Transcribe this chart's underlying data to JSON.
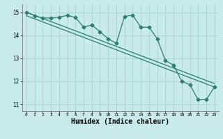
{
  "x": [
    0,
    1,
    2,
    3,
    4,
    5,
    6,
    7,
    8,
    9,
    10,
    11,
    12,
    13,
    14,
    15,
    16,
    17,
    18,
    19,
    20,
    21,
    22,
    23
  ],
  "y_line": [
    15.0,
    14.85,
    14.75,
    14.75,
    14.78,
    14.87,
    14.77,
    14.35,
    14.45,
    14.15,
    13.85,
    13.65,
    14.82,
    14.87,
    14.35,
    14.35,
    13.85,
    12.9,
    12.7,
    12.0,
    11.85,
    11.2,
    11.2,
    11.75
  ],
  "trend1_start": 15.0,
  "trend1_end": 11.9,
  "trend2_start": 14.85,
  "trend2_end": 11.75,
  "line_color": "#2a7f6f",
  "bg_color": "#c8eaea",
  "grid_color": "#a0cccc",
  "xlabel": "Humidex (Indice chaleur)",
  "xlabel_fontsize": 7,
  "yticks": [
    11,
    12,
    13,
    14,
    15
  ],
  "xticks": [
    0,
    1,
    2,
    3,
    4,
    5,
    6,
    7,
    8,
    9,
    10,
    11,
    12,
    13,
    14,
    15,
    16,
    17,
    18,
    19,
    20,
    21,
    22,
    23
  ],
  "ylim": [
    10.7,
    15.35
  ],
  "xlim": [
    -0.5,
    23.5
  ],
  "marker_size": 2.5,
  "line_width": 0.9
}
